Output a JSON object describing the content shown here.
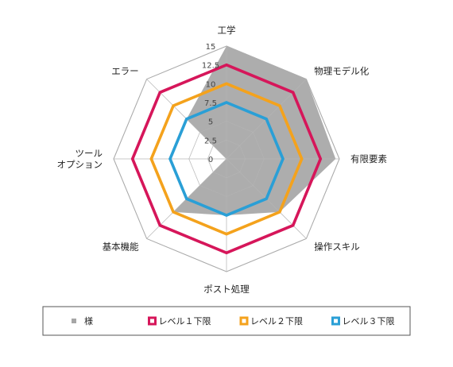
{
  "chart_data": {
    "type": "radar",
    "axes": [
      "工学",
      "物理モデル化",
      "有限要素",
      "操作スキル",
      "ポスト処理",
      "基本機能",
      "ツール\nオプション",
      "エラー"
    ],
    "r_ticks": [
      "0",
      "2.5",
      "5",
      "7.5",
      "10",
      "12.5",
      "15"
    ],
    "r_range": [
      0,
      15
    ],
    "grid": true,
    "legend_position": "bottom",
    "series": [
      {
        "name": "様",
        "color": "#a6a6a6",
        "style": "filled",
        "values": [
          15,
          15,
          14.5,
          10,
          7.5,
          10,
          0,
          7.5
        ]
      },
      {
        "name": "レベル１下限",
        "color": "#d6165a",
        "style": "line",
        "values": [
          12.5,
          12.5,
          12.5,
          12.5,
          12.5,
          12.5,
          12.5,
          12.5
        ]
      },
      {
        "name": "レベル２下限",
        "color": "#f4a21c",
        "style": "line",
        "values": [
          10,
          10,
          10,
          10,
          10,
          10,
          10,
          10
        ]
      },
      {
        "name": "レベル３下限",
        "color": "#2a9fd6",
        "style": "line",
        "values": [
          7.5,
          7.5,
          7.5,
          7.5,
          7.5,
          7.5,
          7.5,
          7.5
        ]
      }
    ]
  }
}
